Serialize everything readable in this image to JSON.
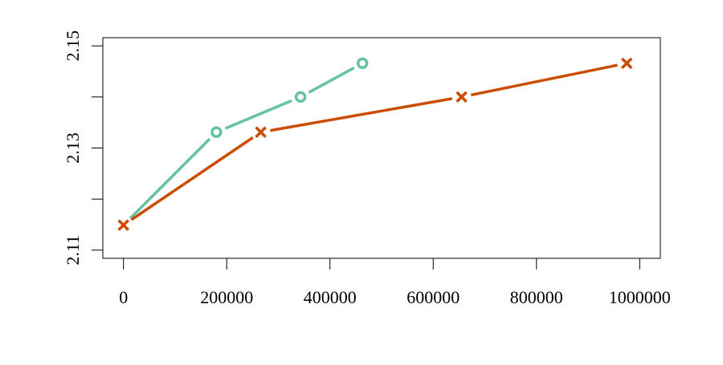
{
  "chart_data": {
    "type": "line",
    "series": [
      {
        "color": "#66c2a5",
        "marker": "circle",
        "x": [
          0,
          180000,
          343000,
          463000
        ],
        "values": [
          2.1149,
          2.1331,
          2.14,
          2.1466
        ]
      },
      {
        "color": "#cc4c02",
        "marker": "cross",
        "x": [
          0,
          266000,
          655000,
          975000
        ],
        "values": [
          2.1149,
          2.1331,
          2.14,
          2.1466
        ]
      }
    ],
    "xlim": [
      -40000,
      1040000
    ],
    "xticks": [
      0,
      200000,
      400000,
      600000,
      800000,
      1000000
    ],
    "ylim": [
      2.1084,
      2.1516
    ],
    "yticks": [
      2.11,
      2.13,
      2.15
    ],
    "yticks_unlabeled": [
      2.12,
      2.14
    ]
  }
}
